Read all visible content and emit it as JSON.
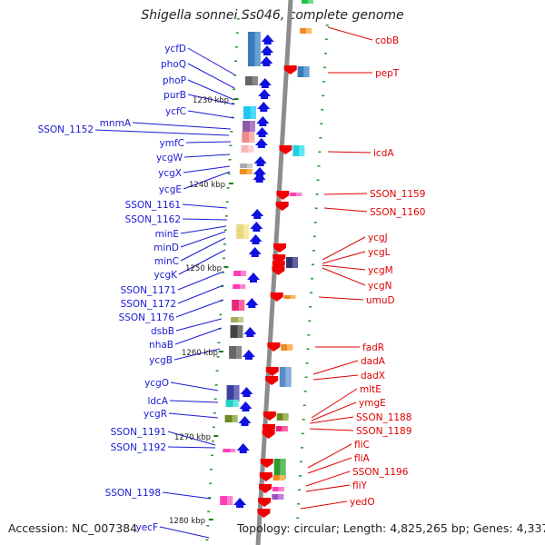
{
  "title": "Shigella sonnei Ss046, complete genome",
  "footer": {
    "accession": "Accession: NC_007384",
    "topology": "Topology: circular; Length: 4,825,265 bp; Genes: 4,337"
  },
  "colors": {
    "left_label": "#1a1ad6",
    "right_label": "#e00000",
    "backbone": "#8c8c8c",
    "tick": "#2e9a2e",
    "forward_arrow": "#1010e0",
    "reverse_arrow": "#f00000"
  },
  "kbp_markers": [
    "1230 kbp",
    "1240 kbp",
    "1250 kbp",
    "1260 kbp",
    "1270 kbp",
    "1280 kbp"
  ],
  "left_genes": [
    "ycfD",
    "phoQ",
    "phoP",
    "purB",
    "ycfC",
    "mnmA",
    "SSON_1152",
    "ymfC",
    "ycgW",
    "ycgX",
    "ycgE",
    "SSON_1161",
    "SSON_1162",
    "minE",
    "minD",
    "minC",
    "ycgK",
    "SSON_1171",
    "SSON_1172",
    "SSON_1176",
    "dsbB",
    "nhaB",
    "ycgB",
    "ycgO",
    "ldcA",
    "ycgR",
    "SSON_1191",
    "SSON_1192",
    "SSON_1198",
    "yecF"
  ],
  "right_genes": [
    "cobB",
    "pepT",
    "icdA",
    "SSON_1159",
    "SSON_1160",
    "ycgJ",
    "ycgL",
    "ycgM",
    "ycgN",
    "umuD",
    "fadR",
    "dadA",
    "dadX",
    "mltE",
    "ymgE",
    "SSON_1188",
    "SSON_1189",
    "fliC",
    "fliA",
    "SSON_1196",
    "fliY",
    "yedO"
  ]
}
